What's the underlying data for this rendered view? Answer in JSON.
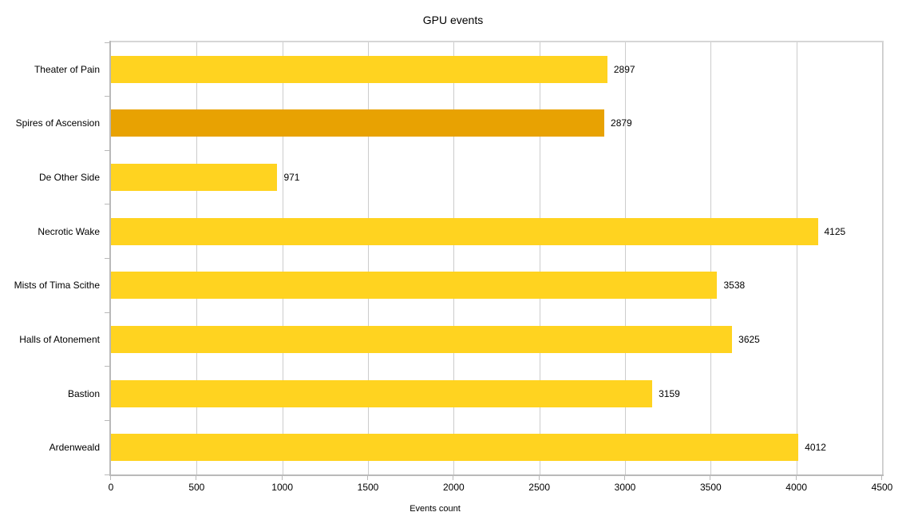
{
  "title": "GPU events",
  "chart_data": {
    "type": "bar",
    "orientation": "horizontal",
    "title": "GPU events",
    "xlabel": "Events count",
    "ylabel": "",
    "categories": [
      "Theater of Pain",
      "Spires of Ascension",
      "De Other Side",
      "Necrotic Wake",
      "Mists of Tima Scithe",
      "Halls of Atonement",
      "Bastion",
      "Ardenweald"
    ],
    "values": [
      2897,
      2879,
      971,
      4125,
      3538,
      3625,
      3159,
      4012
    ],
    "value_labels": [
      "2897",
      "2879",
      "971",
      "4125",
      "3538",
      "3625",
      "3159",
      "4012"
    ],
    "highlighted_category": "Spires of Ascension",
    "highlight_index": 1,
    "x_ticks": [
      0,
      500,
      1000,
      1500,
      2000,
      2500,
      3000,
      3500,
      4000,
      4500
    ],
    "xlim": [
      0,
      4500
    ],
    "grid": "vertical",
    "legend": "none",
    "colors": {
      "bar": "#ffd320",
      "bar_highlight": "#e8a202",
      "gridline": "#cccccc",
      "axis": "#b9b9b9",
      "plot_border": "#d6d6d6",
      "text": "#000000",
      "background": "#ffffff"
    }
  }
}
